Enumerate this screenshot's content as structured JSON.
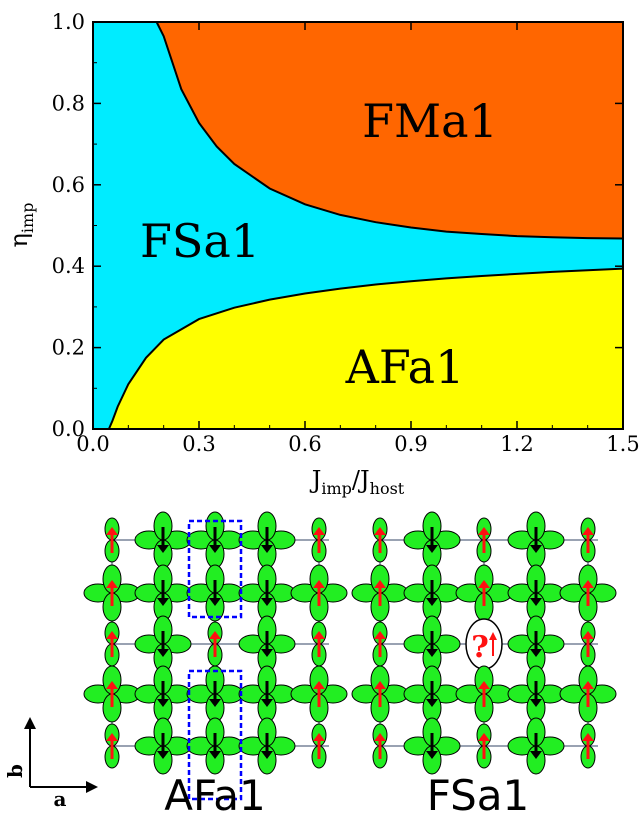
{
  "chart_data": {
    "type": "area",
    "xlabel": {
      "main": "J",
      "sub1": "imp",
      "slash": "/J",
      "sub2": "host"
    },
    "ylabel": {
      "main": "η",
      "sub": "imp"
    },
    "xlim": [
      0.0,
      1.5
    ],
    "ylim": [
      0.0,
      1.0
    ],
    "x_ticks": [
      "0.0",
      "0.3",
      "0.6",
      "0.9",
      "1.2",
      "1.5"
    ],
    "y_ticks": [
      "0.0",
      "0.2",
      "0.4",
      "0.6",
      "0.8",
      "1.0"
    ],
    "grid": false,
    "regions": [
      {
        "name": "FMa1",
        "color": "#ff6600"
      },
      {
        "name": "FSa1",
        "color": "#00ecff"
      },
      {
        "name": "AFa1",
        "color": "#ffff00"
      }
    ],
    "boundaries": {
      "FMa1_FSa1": {
        "x": [
          0.18,
          0.2,
          0.25,
          0.3,
          0.35,
          0.4,
          0.5,
          0.6,
          0.7,
          0.8,
          0.9,
          1.0,
          1.1,
          1.2,
          1.3,
          1.4,
          1.5
        ],
        "y": [
          1.0,
          0.965,
          0.835,
          0.752,
          0.694,
          0.651,
          0.591,
          0.552,
          0.526,
          0.508,
          0.495,
          0.485,
          0.479,
          0.474,
          0.471,
          0.469,
          0.468
        ]
      },
      "FSa1_AFa1": {
        "x": [
          0.045,
          0.055,
          0.07,
          0.1,
          0.15,
          0.2,
          0.3,
          0.4,
          0.5,
          0.6,
          0.7,
          0.8,
          0.9,
          1.0,
          1.1,
          1.2,
          1.3,
          1.4,
          1.5
        ],
        "y": [
          0.0,
          0.02,
          0.055,
          0.11,
          0.175,
          0.22,
          0.27,
          0.298,
          0.318,
          0.333,
          0.345,
          0.355,
          0.363,
          0.37,
          0.376,
          0.381,
          0.386,
          0.39,
          0.394
        ]
      }
    }
  },
  "lattice_panels": [
    {
      "label": "AFa1"
    },
    {
      "label": "FSa1",
      "marker": "?"
    }
  ],
  "axis_indicator": {
    "a": "a",
    "b": "b"
  }
}
